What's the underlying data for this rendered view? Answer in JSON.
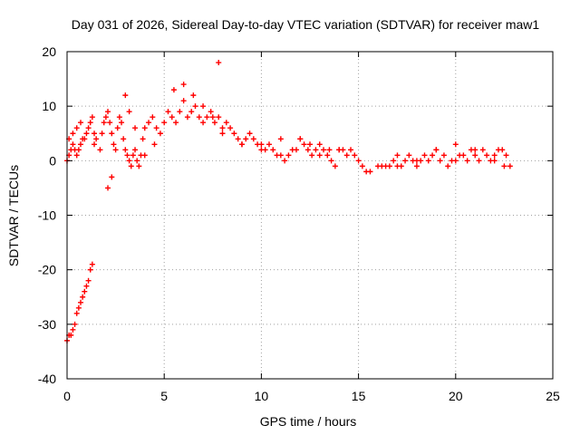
{
  "chart_data": {
    "type": "scatter",
    "title": "Day 031 of 2026, Sidereal Day-to-day VTEC variation (SDTVAR) for receiver maw1",
    "xlabel": "GPS time / hours",
    "ylabel": "SDTVAR / TECUs",
    "xlim": [
      0,
      25
    ],
    "ylim": [
      -40,
      20
    ],
    "xticks": [
      0,
      5,
      10,
      15,
      20,
      25
    ],
    "yticks": [
      -40,
      -30,
      -20,
      -10,
      0,
      10,
      20
    ],
    "xtick_labels": [
      "0",
      "5",
      "10",
      "15",
      "20",
      "25"
    ],
    "ytick_labels": [
      "-40",
      "-30",
      "-20",
      "-10",
      "0",
      "10",
      "20"
    ],
    "grid": true,
    "marker": "+",
    "colors": {
      "series": "#ff0000",
      "grid": "#a0a0a0",
      "axis": "#000000"
    },
    "series": [
      {
        "name": "SDTVAR",
        "x": [
          0.0,
          0.1,
          0.2,
          0.3,
          0.4,
          0.5,
          0.6,
          0.7,
          0.8,
          0.9,
          1.0,
          1.1,
          1.2,
          1.3,
          0.0,
          0.1,
          0.2,
          0.3,
          0.4,
          0.5,
          0.6,
          0.7,
          0.8,
          0.9,
          1.0,
          1.1,
          1.2,
          1.3,
          1.4,
          0.1,
          0.3,
          0.5,
          0.7,
          1.4,
          1.5,
          1.7,
          1.8,
          1.9,
          2.0,
          2.1,
          2.2,
          2.3,
          2.4,
          2.5,
          2.6,
          2.7,
          2.8,
          2.9,
          3.0,
          3.1,
          3.2,
          3.3,
          3.4,
          3.5,
          3.6,
          3.7,
          3.8,
          3.9,
          4.0,
          4.2,
          4.4,
          4.6,
          4.8,
          5.0,
          5.2,
          5.4,
          5.6,
          5.8,
          6.0,
          6.2,
          6.4,
          6.6,
          6.8,
          7.0,
          7.2,
          7.4,
          7.6,
          7.8,
          8.0,
          8.2,
          8.4,
          8.6,
          8.8,
          9.0,
          9.2,
          9.4,
          9.6,
          9.8,
          10.0,
          10.2,
          10.4,
          10.6,
          10.8,
          11.0,
          11.2,
          11.4,
          11.6,
          11.8,
          12.0,
          12.2,
          12.4,
          12.6,
          12.8,
          13.0,
          13.2,
          13.4,
          13.6,
          13.8,
          14.0,
          14.2,
          14.4,
          14.6,
          14.8,
          15.0,
          15.2,
          15.4,
          15.6,
          16.0,
          16.2,
          16.4,
          16.6,
          16.8,
          17.0,
          17.2,
          17.4,
          17.6,
          17.8,
          18.0,
          18.2,
          18.4,
          18.6,
          18.8,
          19.0,
          19.2,
          19.4,
          19.6,
          19.8,
          20.0,
          20.2,
          20.4,
          20.6,
          20.8,
          21.0,
          21.2,
          21.4,
          21.6,
          21.8,
          22.0,
          22.2,
          22.4,
          22.6,
          22.8,
          2.1,
          2.3,
          3.0,
          3.2,
          3.5,
          4.0,
          4.5,
          5.5,
          6.0,
          6.5,
          7.0,
          7.5,
          8.0,
          9.0,
          10.0,
          11.0,
          12.0,
          12.5,
          13.0,
          13.5,
          14.0,
          17.0,
          18.0,
          19.0,
          20.0,
          21.0,
          22.0,
          22.5,
          7.8
        ],
        "y": [
          -33,
          -32,
          -32,
          -31,
          -30,
          -28,
          -27,
          -26,
          -25,
          -24,
          -23,
          -22,
          -20,
          -19,
          0,
          1,
          2,
          3,
          2,
          1,
          2,
          3,
          4,
          4,
          5,
          6,
          7,
          8,
          5,
          4,
          5,
          6,
          7,
          3,
          4,
          2,
          5,
          7,
          8,
          9,
          7,
          5,
          3,
          2,
          6,
          8,
          7,
          4,
          2,
          1,
          0,
          -1,
          1,
          2,
          0,
          -1,
          1,
          4,
          6,
          7,
          8,
          6,
          5,
          7,
          9,
          8,
          7,
          9,
          11,
          8,
          9,
          10,
          8,
          7,
          8,
          9,
          7,
          8,
          6,
          7,
          6,
          5,
          4,
          3,
          4,
          5,
          4,
          3,
          3,
          2,
          3,
          2,
          1,
          1,
          0,
          1,
          2,
          2,
          4,
          3,
          2,
          1,
          2,
          3,
          2,
          1,
          0,
          -1,
          2,
          2,
          1,
          2,
          1,
          0,
          -1,
          -2,
          -2,
          -1,
          -1,
          -1,
          -1,
          0,
          -1,
          -1,
          0,
          1,
          0,
          -1,
          0,
          1,
          0,
          1,
          2,
          0,
          1,
          -1,
          0,
          0,
          1,
          1,
          0,
          2,
          1,
          0,
          2,
          1,
          0,
          1,
          2,
          2,
          1,
          -1,
          -5,
          -3,
          12,
          9,
          6,
          1,
          3,
          13,
          14,
          12,
          10,
          8,
          5,
          3,
          2,
          4,
          4,
          3,
          1,
          2,
          2,
          1,
          0,
          2,
          3,
          2,
          0,
          -1,
          18
        ]
      }
    ]
  }
}
